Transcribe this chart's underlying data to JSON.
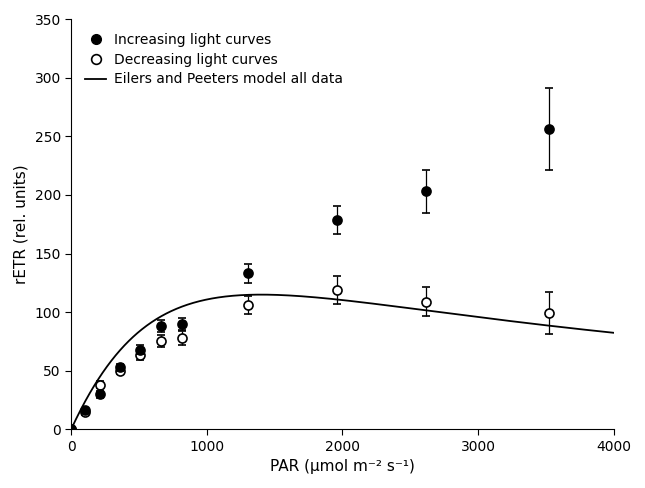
{
  "increasing_x": [
    0,
    105,
    210,
    360,
    510,
    665,
    820,
    1300,
    1960,
    2620,
    3520
  ],
  "increasing_y": [
    0,
    16,
    30,
    53,
    68,
    88,
    90,
    133,
    179,
    203,
    256
  ],
  "increasing_yerr": [
    0,
    2,
    3,
    3,
    4,
    5,
    5,
    8,
    12,
    18,
    35
  ],
  "decreasing_x": [
    0,
    105,
    210,
    360,
    510,
    665,
    820,
    1300,
    1960,
    2620,
    3520
  ],
  "decreasing_y": [
    0,
    15,
    38,
    50,
    63,
    75,
    78,
    106,
    119,
    109,
    99
  ],
  "decreasing_yerr": [
    0,
    3,
    3,
    3,
    4,
    5,
    6,
    8,
    12,
    12,
    18
  ],
  "xlabel": "PAR (μmol m⁻² s⁻¹)",
  "ylabel": "rETR (rel. units)",
  "xlim": [
    0,
    4000
  ],
  "ylim": [
    0,
    350
  ],
  "xticks": [
    0,
    1000,
    2000,
    3000,
    4000
  ],
  "yticks": [
    0,
    50,
    100,
    150,
    200,
    250,
    300,
    350
  ],
  "legend_labels": [
    "Increasing light curves",
    "Decreasing light curves",
    "Eilers and Peeters model all data"
  ],
  "ep_alpha": 0.0095,
  "ep_beta": 4.55e-06,
  "ep_gamma": 8.5e-09,
  "background_color": "#ffffff",
  "line_color": "#000000"
}
